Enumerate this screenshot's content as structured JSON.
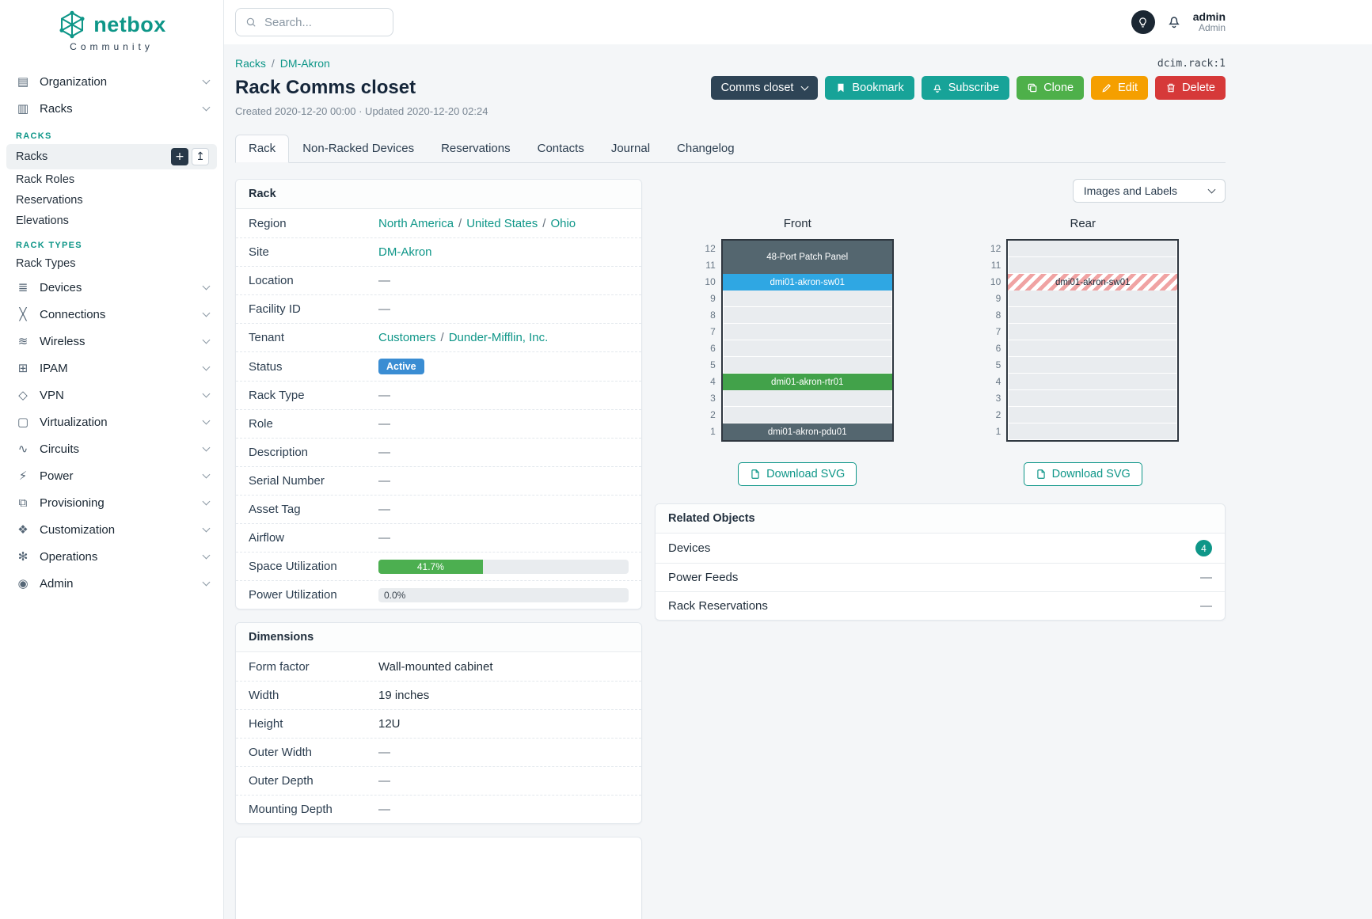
{
  "colors": {
    "brand_teal": "#0e9688",
    "link_teal": "#0e9688",
    "button_teal": "#17a398",
    "clone_green": "#4eb04a",
    "edit_yellow": "#f59f00",
    "delete_red": "#d63939",
    "dark_button": "#2e4456",
    "status_active_blue": "#3a8dd3",
    "progress_green": "#4caf50",
    "rack_device_blue": "#2fa7e3",
    "rack_device_green": "#42a24a",
    "rack_device_slate": "#54666f",
    "rear_hatch_red": "#f0a3a3",
    "count_badge_teal": "#0e9688"
  },
  "brand": {
    "name": "netbox",
    "subtitle": "Community"
  },
  "topbar": {
    "search_placeholder": "Search...",
    "user_name": "admin",
    "user_role": "Admin"
  },
  "sidebar": {
    "items": [
      {
        "label": "Organization",
        "icon": "building-icon",
        "glyph": "▤"
      },
      {
        "label": "Racks",
        "icon": "rack-icon",
        "glyph": "▥"
      },
      {
        "label": "Devices",
        "icon": "devices-icon",
        "glyph": "≣"
      },
      {
        "label": "Connections",
        "icon": "connections-icon",
        "glyph": "╳"
      },
      {
        "label": "Wireless",
        "icon": "wireless-icon",
        "glyph": "≋"
      },
      {
        "label": "IPAM",
        "icon": "ipam-icon",
        "glyph": "⊞"
      },
      {
        "label": "VPN",
        "icon": "vpn-icon",
        "glyph": "◇"
      },
      {
        "label": "Virtualization",
        "icon": "virtualization-icon",
        "glyph": "▢"
      },
      {
        "label": "Circuits",
        "icon": "circuits-icon",
        "glyph": "∿"
      },
      {
        "label": "Power",
        "icon": "power-icon",
        "glyph": "⚡"
      },
      {
        "label": "Provisioning",
        "icon": "provisioning-icon",
        "glyph": "⧉"
      },
      {
        "label": "Customization",
        "icon": "customization-icon",
        "glyph": "❖"
      },
      {
        "label": "Operations",
        "icon": "operations-icon",
        "glyph": "✻"
      },
      {
        "label": "Admin",
        "icon": "admin-icon",
        "glyph": "◉"
      }
    ],
    "racks_section": "RACKS",
    "racks_children": [
      "Racks",
      "Rack Roles",
      "Reservations",
      "Elevations"
    ],
    "rack_types_section": "RACK TYPES",
    "rack_types_children": [
      "Rack Types"
    ],
    "add_glyph": "+",
    "import_glyph": "↥"
  },
  "page": {
    "breadcrumb": [
      "Racks",
      "DM-Akron"
    ],
    "sep": "/",
    "object_id": "dcim.rack:1",
    "title": "Rack Comms closet",
    "meta": "Created 2020-12-20 00:00 · Updated 2020-12-20 02:24",
    "actions": {
      "status_dropdown": "Comms closet",
      "bookmark": "Bookmark",
      "subscribe": "Subscribe",
      "clone": "Clone",
      "edit": "Edit",
      "delete": "Delete"
    },
    "tabs": [
      "Rack",
      "Non-Racked Devices",
      "Reservations",
      "Contacts",
      "Journal",
      "Changelog"
    ]
  },
  "rack_card": {
    "title": "Rack",
    "rows": [
      {
        "label": "Region",
        "parts": [
          "North America",
          "United States",
          "Ohio"
        ]
      },
      {
        "label": "Site",
        "parts": [
          "DM-Akron"
        ]
      },
      {
        "label": "Location",
        "value": "—"
      },
      {
        "label": "Facility ID",
        "value": "—"
      },
      {
        "label": "Tenant",
        "parts": [
          "Customers",
          "Dunder-Mifflin, Inc."
        ]
      },
      {
        "label": "Status",
        "value": "Active"
      },
      {
        "label": "Rack Type",
        "value": "—"
      },
      {
        "label": "Role",
        "value": "—"
      },
      {
        "label": "Description",
        "value": "—"
      },
      {
        "label": "Serial Number",
        "value": "—"
      },
      {
        "label": "Asset Tag",
        "value": "—"
      },
      {
        "label": "Airflow",
        "value": "—"
      },
      {
        "label": "Space Utilization",
        "value": "41.7%",
        "percent": 41.7
      },
      {
        "label": "Power Utilization",
        "value": "0.0%",
        "percent": 0
      }
    ]
  },
  "dimensions_card": {
    "title": "Dimensions",
    "rows": [
      {
        "label": "Form factor",
        "value": "Wall-mounted cabinet"
      },
      {
        "label": "Width",
        "value": "19 inches"
      },
      {
        "label": "Height",
        "value": "12U"
      },
      {
        "label": "Outer Width",
        "value": "—"
      },
      {
        "label": "Outer Depth",
        "value": "—"
      },
      {
        "label": "Mounting Depth",
        "value": "—"
      }
    ]
  },
  "elevations": {
    "toggle_label": "Images and Labels",
    "download_label": "Download SVG",
    "units": [
      "12",
      "11",
      "10",
      "9",
      "8",
      "7",
      "6",
      "5",
      "4",
      "3",
      "2",
      "1"
    ],
    "front": {
      "title": "Front",
      "slots": [
        {
          "label": "48-Port Patch Panel",
          "color": "#54666f",
          "span": 2
        },
        {
          "label": "dmi01-akron-sw01",
          "color": "#2fa7e3",
          "span": 1
        },
        {},
        {},
        {},
        {},
        {},
        {
          "label": "dmi01-akron-rtr01",
          "color": "#42a24a",
          "span": 1
        },
        {},
        {},
        {
          "label": "dmi01-akron-pdu01",
          "color": "#54666f",
          "span": 1
        }
      ]
    },
    "rear": {
      "title": "Rear",
      "slots": [
        {},
        {},
        {
          "label": "dmi01-akron-sw01",
          "hatched": true
        },
        {},
        {},
        {},
        {},
        {},
        {},
        {},
        {},
        {}
      ]
    }
  },
  "related_objects": {
    "title": "Related Objects",
    "rows": [
      {
        "label": "Devices",
        "count": "4"
      },
      {
        "label": "Power Feeds",
        "value": "—"
      },
      {
        "label": "Rack Reservations",
        "value": "—"
      }
    ]
  }
}
